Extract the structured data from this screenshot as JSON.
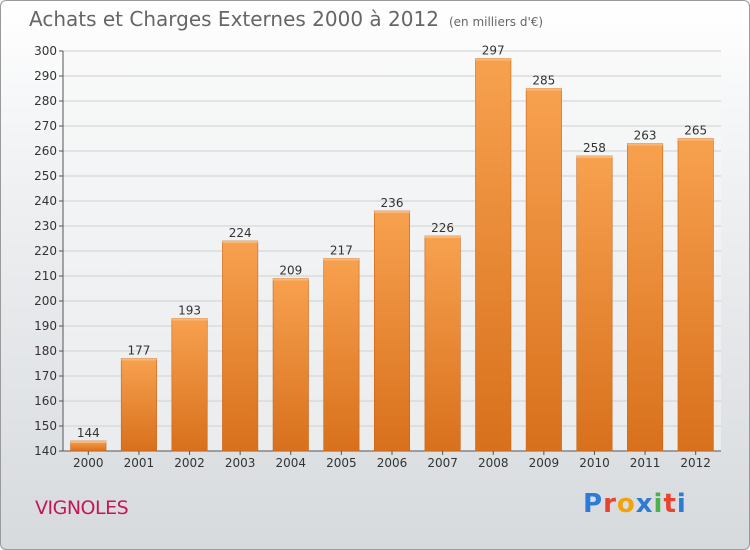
{
  "title": "Achats et Charges Externes 2000 à 2012",
  "unit": "(en milliers d'€)",
  "city": "VIGNOLES",
  "logo": {
    "text": "Proxiti",
    "colors": [
      "#2e7bd6",
      "#e8432e",
      "#f2a20f",
      "#2e7bd6",
      "#4caf50",
      "#e8432e",
      "#2e7bd6"
    ]
  },
  "colors": {
    "bar_top": "#f7a14f",
    "bar_bottom": "#d8701c",
    "axis_text": "#333333",
    "grid": "#d0d0d0"
  },
  "chart_data": {
    "type": "bar",
    "categories": [
      "2000",
      "2001",
      "2002",
      "2003",
      "2004",
      "2005",
      "2006",
      "2007",
      "2008",
      "2009",
      "2010",
      "2011",
      "2012"
    ],
    "values": [
      144,
      177,
      193,
      224,
      209,
      217,
      236,
      226,
      297,
      285,
      258,
      263,
      265
    ],
    "ylim": [
      140,
      300
    ],
    "yticks": [
      140,
      150,
      160,
      170,
      180,
      190,
      200,
      210,
      220,
      230,
      240,
      250,
      260,
      270,
      280,
      290,
      300
    ],
    "grid": true
  }
}
